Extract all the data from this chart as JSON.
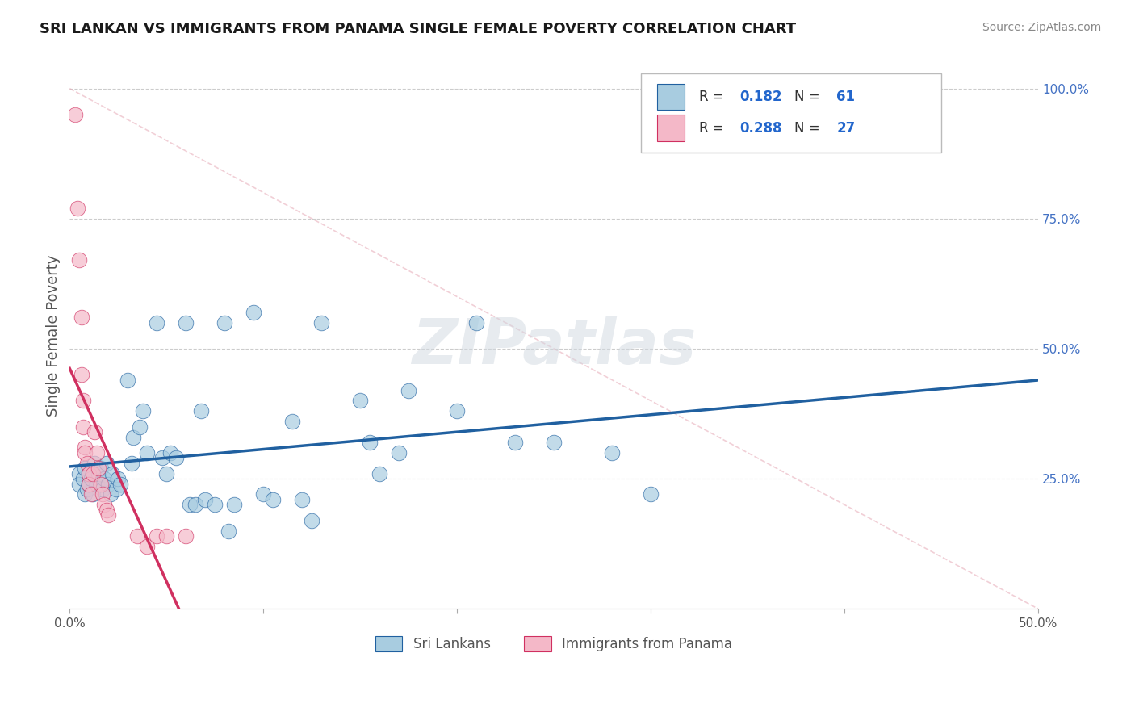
{
  "title": "SRI LANKAN VS IMMIGRANTS FROM PANAMA SINGLE FEMALE POVERTY CORRELATION CHART",
  "source": "Source: ZipAtlas.com",
  "ylabel": "Single Female Poverty",
  "right_yticks": [
    "100.0%",
    "75.0%",
    "50.0%",
    "25.0%"
  ],
  "right_ytick_vals": [
    1.0,
    0.75,
    0.5,
    0.25
  ],
  "xlim": [
    0.0,
    0.5
  ],
  "ylim": [
    0.0,
    1.05
  ],
  "legend_r1": "0.182",
  "legend_n1": "61",
  "legend_r2": "0.288",
  "legend_n2": "27",
  "legend_label1": "Sri Lankans",
  "legend_label2": "Immigrants from Panama",
  "color_blue": "#a8cce0",
  "color_pink": "#f4b8c8",
  "trend_blue": "#2060a0",
  "trend_pink": "#d03060",
  "diag_color": "#e0a0b0",
  "watermark": "ZIPatlas",
  "scatter_blue": [
    [
      0.005,
      0.26
    ],
    [
      0.005,
      0.24
    ],
    [
      0.007,
      0.25
    ],
    [
      0.008,
      0.27
    ],
    [
      0.008,
      0.22
    ],
    [
      0.009,
      0.23
    ],
    [
      0.01,
      0.26
    ],
    [
      0.01,
      0.24
    ],
    [
      0.011,
      0.25
    ],
    [
      0.012,
      0.22
    ],
    [
      0.013,
      0.28
    ],
    [
      0.014,
      0.24
    ],
    [
      0.015,
      0.26
    ],
    [
      0.016,
      0.27
    ],
    [
      0.017,
      0.23
    ],
    [
      0.018,
      0.25
    ],
    [
      0.019,
      0.28
    ],
    [
      0.02,
      0.24
    ],
    [
      0.021,
      0.22
    ],
    [
      0.022,
      0.26
    ],
    [
      0.024,
      0.23
    ],
    [
      0.025,
      0.25
    ],
    [
      0.026,
      0.24
    ],
    [
      0.03,
      0.44
    ],
    [
      0.032,
      0.28
    ],
    [
      0.033,
      0.33
    ],
    [
      0.036,
      0.35
    ],
    [
      0.038,
      0.38
    ],
    [
      0.04,
      0.3
    ],
    [
      0.045,
      0.55
    ],
    [
      0.048,
      0.29
    ],
    [
      0.05,
      0.26
    ],
    [
      0.052,
      0.3
    ],
    [
      0.055,
      0.29
    ],
    [
      0.06,
      0.55
    ],
    [
      0.062,
      0.2
    ],
    [
      0.065,
      0.2
    ],
    [
      0.068,
      0.38
    ],
    [
      0.07,
      0.21
    ],
    [
      0.075,
      0.2
    ],
    [
      0.08,
      0.55
    ],
    [
      0.082,
      0.15
    ],
    [
      0.085,
      0.2
    ],
    [
      0.095,
      0.57
    ],
    [
      0.1,
      0.22
    ],
    [
      0.105,
      0.21
    ],
    [
      0.115,
      0.36
    ],
    [
      0.12,
      0.21
    ],
    [
      0.125,
      0.17
    ],
    [
      0.13,
      0.55
    ],
    [
      0.15,
      0.4
    ],
    [
      0.155,
      0.32
    ],
    [
      0.16,
      0.26
    ],
    [
      0.17,
      0.3
    ],
    [
      0.175,
      0.42
    ],
    [
      0.2,
      0.38
    ],
    [
      0.21,
      0.55
    ],
    [
      0.23,
      0.32
    ],
    [
      0.25,
      0.32
    ],
    [
      0.28,
      0.3
    ],
    [
      0.3,
      0.22
    ]
  ],
  "scatter_pink": [
    [
      0.003,
      0.95
    ],
    [
      0.004,
      0.77
    ],
    [
      0.005,
      0.67
    ],
    [
      0.006,
      0.56
    ],
    [
      0.006,
      0.45
    ],
    [
      0.007,
      0.4
    ],
    [
      0.007,
      0.35
    ],
    [
      0.008,
      0.31
    ],
    [
      0.008,
      0.3
    ],
    [
      0.009,
      0.28
    ],
    [
      0.01,
      0.26
    ],
    [
      0.01,
      0.24
    ],
    [
      0.011,
      0.22
    ],
    [
      0.012,
      0.26
    ],
    [
      0.013,
      0.34
    ],
    [
      0.014,
      0.3
    ],
    [
      0.015,
      0.27
    ],
    [
      0.016,
      0.24
    ],
    [
      0.017,
      0.22
    ],
    [
      0.018,
      0.2
    ],
    [
      0.019,
      0.19
    ],
    [
      0.02,
      0.18
    ],
    [
      0.035,
      0.14
    ],
    [
      0.04,
      0.12
    ],
    [
      0.045,
      0.14
    ],
    [
      0.05,
      0.14
    ],
    [
      0.06,
      0.14
    ]
  ]
}
